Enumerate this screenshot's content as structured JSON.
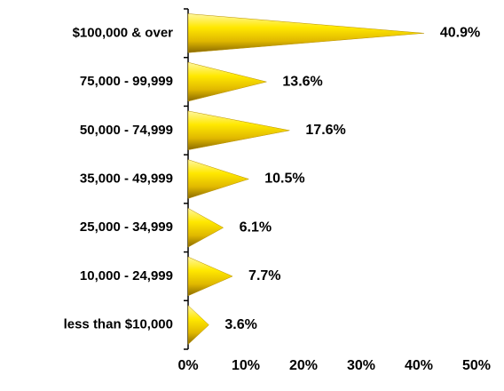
{
  "chart_data": {
    "type": "cone-bar",
    "orientation": "horizontal",
    "categories": [
      "$100,000 & over",
      "75,000 - 99,999",
      "50,000 - 74,999",
      "35,000 - 49,999",
      "25,000 - 34,999",
      "10,000 - 24,999",
      "less than $10,000"
    ],
    "values": [
      40.9,
      13.6,
      17.6,
      10.5,
      6.1,
      7.7,
      3.6
    ],
    "value_labels": [
      "40.9%",
      "13.6%",
      "17.6%",
      "10.5%",
      "6.1%",
      "7.7%",
      "3.6%"
    ],
    "color": "#f2d200",
    "xlim": [
      0,
      50
    ],
    "xticks": [
      {
        "value": 0,
        "label": "0%"
      },
      {
        "value": 10,
        "label": "10%"
      },
      {
        "value": 20,
        "label": "20%"
      },
      {
        "value": 30,
        "label": "30%"
      },
      {
        "value": 40,
        "label": "40%"
      },
      {
        "value": 50,
        "label": "50%"
      }
    ],
    "grid": false
  }
}
